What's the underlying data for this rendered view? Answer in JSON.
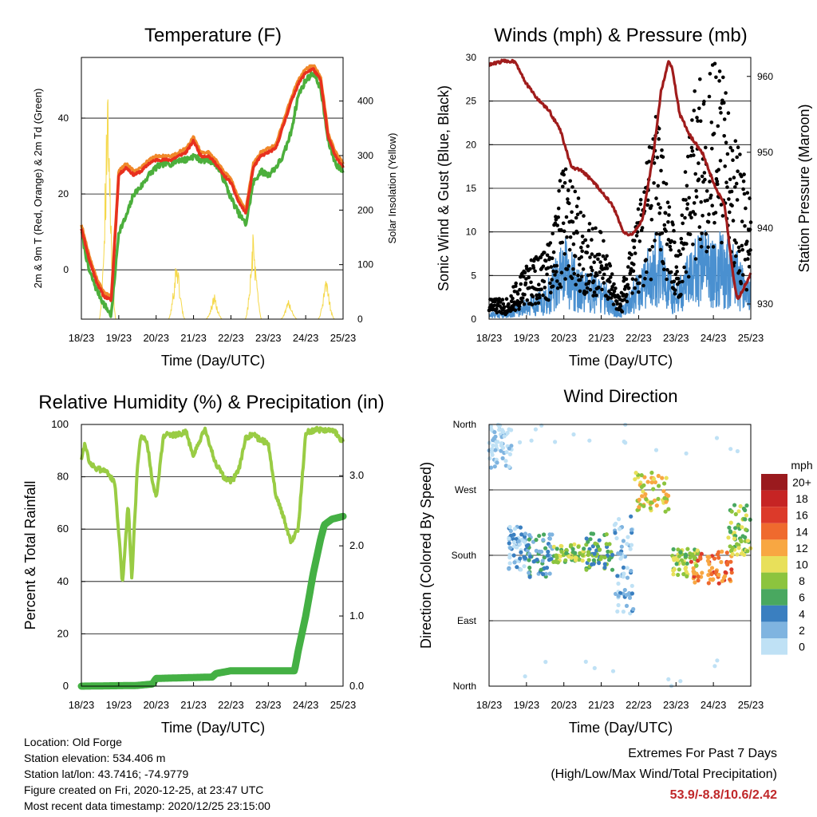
{
  "colors": {
    "temp2m": "#e8301e",
    "temp9m": "#f0882a",
    "dewpoint": "#4caf3c",
    "solar": "#f5d84a",
    "gust": "#000000",
    "wind": "#4a90d0",
    "pressure": "#a01c1c",
    "rh": "#99cc44",
    "rain": "#44b044",
    "extremes": "#c0282a"
  },
  "x_ticks": [
    "18/23",
    "19/23",
    "20/23",
    "21/23",
    "22/23",
    "23/23",
    "24/23",
    "25/23"
  ],
  "panels": {
    "temperature": {
      "title": "Temperature (F)",
      "xlabel": "Time (Day/UTC)",
      "ylabel_left": "2m & 9m T (Red, Orange) & 2m Td (Green)",
      "ylabel_right": "Solar Insolation (Yellow)",
      "yticks_left": [
        "0",
        "20",
        "40"
      ],
      "yticks_right": [
        "0",
        "100",
        "200",
        "300",
        "400"
      ]
    },
    "winds": {
      "title": "Winds (mph) & Pressure (mb)",
      "xlabel": "Time (Day/UTC)",
      "ylabel_left": "Sonic Wind & Gust (Blue, Black)",
      "ylabel_right": "Station Pressure (Maroon)",
      "yticks_left": [
        "0",
        "5",
        "10",
        "15",
        "20",
        "25",
        "30"
      ],
      "yticks_right": [
        "930",
        "940",
        "950",
        "960"
      ]
    },
    "humidity": {
      "title": "Relative Humidity (%) & Precipitation (in)",
      "xlabel": "Time (Day/UTC)",
      "ylabel_left": "Percent & Total Rainfall",
      "yticks_left": [
        "0",
        "20",
        "40",
        "60",
        "80",
        "100"
      ],
      "yticks_right": [
        "0.0",
        "1.0",
        "2.0",
        "3.0"
      ]
    },
    "direction": {
      "title": "Wind Direction",
      "xlabel": "Time (Day/UTC)",
      "ylabel_left": "Direction (Colored By Speed)",
      "yticks_left": [
        "North",
        "East",
        "South",
        "West",
        "North"
      ],
      "legend_title": "mph",
      "legend_labels": [
        "20+",
        "18",
        "16",
        "14",
        "12",
        "10",
        "8",
        "6",
        "4",
        "2",
        "0"
      ],
      "legend_colors": [
        "#9a1a1e",
        "#c62424",
        "#dc3a2a",
        "#ef6a2e",
        "#f8a742",
        "#e8e05a",
        "#8cc43e",
        "#49a860",
        "#3a7fc0",
        "#7fb4e0",
        "#bfe1f5"
      ]
    }
  },
  "chart_data": [
    {
      "type": "line",
      "title": "Temperature (F)",
      "xlabel": "Time (Day/UTC)",
      "ylabel": "2m & 9m T (Red, Orange) & 2m Td (Green)",
      "y2label": "Solar Insolation (Yellow)",
      "x": [
        0,
        0.2,
        0.4,
        0.6,
        0.8,
        1.0,
        1.2,
        1.4,
        1.6,
        1.8,
        2.0,
        2.2,
        2.4,
        2.6,
        2.8,
        3.0,
        3.2,
        3.4,
        3.6,
        3.8,
        4.0,
        4.2,
        4.4,
        4.6,
        4.8,
        5.0,
        5.2,
        5.4,
        5.6,
        5.8,
        6.0,
        6.2,
        6.4,
        6.6,
        6.8,
        7.0
      ],
      "ylim": [
        -13,
        56
      ],
      "y2lim": [
        0,
        480
      ],
      "series": [
        {
          "name": "2m T",
          "axis": "left",
          "color": "#e8301e",
          "values": [
            11,
            3,
            -3,
            -7,
            -8,
            25,
            27,
            25,
            26,
            28,
            29,
            29,
            29,
            30,
            31,
            34,
            30,
            30,
            28,
            25,
            23,
            18,
            15,
            27,
            30,
            31,
            32,
            38,
            44,
            49,
            52,
            53,
            50,
            35,
            30,
            27
          ]
        },
        {
          "name": "9m T",
          "axis": "left",
          "color": "#f0882a",
          "values": [
            12,
            4,
            -2,
            -6,
            -7,
            26,
            28,
            26,
            27,
            29,
            30,
            30,
            30,
            31,
            32,
            35,
            31,
            31,
            29,
            26,
            24,
            19,
            16,
            28,
            31,
            32,
            33,
            39,
            45,
            50,
            53,
            54,
            51,
            36,
            31,
            28
          ]
        },
        {
          "name": "2m Td",
          "axis": "left",
          "color": "#4caf3c",
          "values": [
            10,
            0,
            -5,
            -9,
            -12,
            10,
            14,
            20,
            22,
            25,
            27,
            28,
            28,
            29,
            29,
            30,
            29,
            29,
            28,
            24,
            19,
            15,
            12,
            23,
            26,
            25,
            27,
            30,
            36,
            46,
            50,
            52,
            48,
            34,
            28,
            26
          ]
        },
        {
          "name": "Solar Insolation",
          "axis": "right",
          "color": "#f5d84a",
          "peaks_x": [
            0.7,
            2.55,
            3.55,
            4.6,
            5.55,
            6.55
          ],
          "peaks_y": [
            475,
            130,
            50,
            170,
            40,
            85
          ]
        }
      ]
    },
    {
      "type": "scatter",
      "title": "Winds (mph) & Pressure (mb)",
      "xlabel": "Time (Day/UTC)",
      "ylabel": "Sonic Wind & Gust (Blue, Black)",
      "y2label": "Station Pressure (Maroon)",
      "ylim": [
        0,
        30
      ],
      "y2lim": [
        928,
        962.5
      ],
      "pressure": {
        "name": "Station Pressure",
        "color": "#a01c1c",
        "x": [
          0,
          0.35,
          0.7,
          1.0,
          1.3,
          1.6,
          1.9,
          2.2,
          2.5,
          2.9,
          3.3,
          3.6,
          3.8,
          4.1,
          4.4,
          4.6,
          4.8,
          4.9,
          5.1,
          5.4,
          5.7,
          6.0,
          6.3,
          6.55,
          6.65,
          6.8,
          7.0
        ],
        "y": [
          961.5,
          962,
          962,
          959,
          957,
          955.5,
          953,
          948,
          947.5,
          945.5,
          943,
          939.5,
          939,
          941,
          950,
          958,
          962,
          961,
          955,
          952,
          950,
          946,
          943,
          933,
          930.5,
          932,
          934
        ]
      },
      "wind": {
        "name": "Sonic Wind",
        "color": "#4a90d0",
        "x": [
          0,
          0.5,
          1.0,
          1.5,
          2.0,
          2.5,
          3.0,
          3.5,
          4.0,
          4.5,
          5.0,
          5.5,
          6.0,
          6.5,
          7.0
        ],
        "y": [
          0.5,
          0.5,
          1.5,
          2,
          5.5,
          3,
          3,
          0.5,
          3.5,
          6,
          2,
          5.5,
          6,
          5,
          3
        ]
      },
      "gust": {
        "name": "Gust",
        "color": "#000000",
        "x": [
          0,
          0.5,
          1.0,
          1.5,
          2.0,
          2.5,
          3.0,
          3.5,
          4.0,
          4.5,
          5.0,
          5.5,
          6.0,
          6.5,
          7.0
        ],
        "y": [
          1.5,
          1.5,
          4,
          5,
          11,
          8,
          6,
          1.5,
          8,
          15,
          5,
          16,
          19,
          15,
          8
        ]
      }
    },
    {
      "type": "line",
      "title": "Relative Humidity (%) & Precipitation (in)",
      "xlabel": "Time (Day/UTC)",
      "ylabel": "Percent & Total Rainfall",
      "ylim": [
        0,
        100
      ],
      "y2lim": [
        0,
        3.73
      ],
      "series": [
        {
          "name": "Relative Humidity",
          "axis": "left",
          "color": "#99cc44",
          "x": [
            0,
            0.1,
            0.2,
            0.4,
            0.7,
            0.9,
            1.1,
            1.25,
            1.35,
            1.5,
            1.6,
            1.75,
            1.9,
            2.0,
            2.2,
            2.5,
            2.8,
            3.0,
            3.3,
            3.6,
            3.8,
            4.0,
            4.2,
            4.4,
            4.6,
            4.8,
            5.0,
            5.2,
            5.4,
            5.6,
            5.8,
            6.0,
            6.3,
            6.6,
            6.8,
            7.0
          ],
          "y": [
            87,
            93,
            86,
            83,
            82,
            77,
            39,
            70,
            41,
            85,
            96,
            94,
            78,
            72,
            96,
            96,
            97,
            88,
            98,
            85,
            80,
            78,
            82,
            95,
            96,
            94,
            93,
            73,
            65,
            55,
            60,
            97,
            98,
            98,
            97,
            93
          ]
        },
        {
          "name": "Total Rainfall",
          "axis": "right",
          "color": "#44b044",
          "x": [
            0,
            1.5,
            1.9,
            2.0,
            3.5,
            3.6,
            4.0,
            5.0,
            5.7,
            5.8,
            6.0,
            6.2,
            6.4,
            6.5,
            6.7,
            7.0
          ],
          "y": [
            0,
            0.01,
            0.03,
            0.11,
            0.13,
            0.18,
            0.22,
            0.22,
            0.22,
            0.5,
            1.0,
            1.6,
            2.1,
            2.3,
            2.38,
            2.42
          ]
        }
      ]
    },
    {
      "type": "scatter",
      "title": "Wind Direction",
      "xlabel": "Time (Day/UTC)",
      "ylabel": "Direction (Colored By Speed)",
      "ylim": [
        0,
        360
      ],
      "clusters": [
        {
          "x": [
            0,
            0.6
          ],
          "dir": [
            300,
            360
          ],
          "speed": 0
        },
        {
          "x": [
            0.5,
            1.0
          ],
          "dir": [
            160,
            220
          ],
          "speed": 1
        },
        {
          "x": [
            1.0,
            1.7
          ],
          "dir": [
            150,
            210
          ],
          "speed": 2
        },
        {
          "x": [
            1.7,
            2.6
          ],
          "dir": [
            170,
            195
          ],
          "speed": 4
        },
        {
          "x": [
            2.6,
            3.3
          ],
          "dir": [
            160,
            210
          ],
          "speed": 3
        },
        {
          "x": [
            3.3,
            3.9
          ],
          "dir": [
            100,
            240
          ],
          "speed": 1
        },
        {
          "x": [
            3.9,
            4.8
          ],
          "dir": [
            240,
            295
          ],
          "speed": 5
        },
        {
          "x": [
            4.9,
            5.6
          ],
          "dir": [
            150,
            190
          ],
          "speed": 4
        },
        {
          "x": [
            5.4,
            6.5
          ],
          "dir": [
            140,
            185
          ],
          "speed": 7
        },
        {
          "x": [
            6.4,
            7.0
          ],
          "dir": [
            180,
            250
          ],
          "speed": 4
        }
      ]
    }
  ],
  "info": {
    "location": "Location: Old Forge",
    "elevation": "Station elevation: 534.406 m",
    "latlon": "Station lat/lon: 43.7416; -74.9779",
    "created": "Figure created on Fri, 2020-12-25, at 23:47 UTC",
    "recent": "Most recent data timestamp: 2020/12/25 23:15:00"
  },
  "extremes": {
    "title": "Extremes For Past 7 Days",
    "subtitle": "(High/Low/Max Wind/Total Precipitation)",
    "values": "53.9/-8.8/10.6/2.42"
  }
}
